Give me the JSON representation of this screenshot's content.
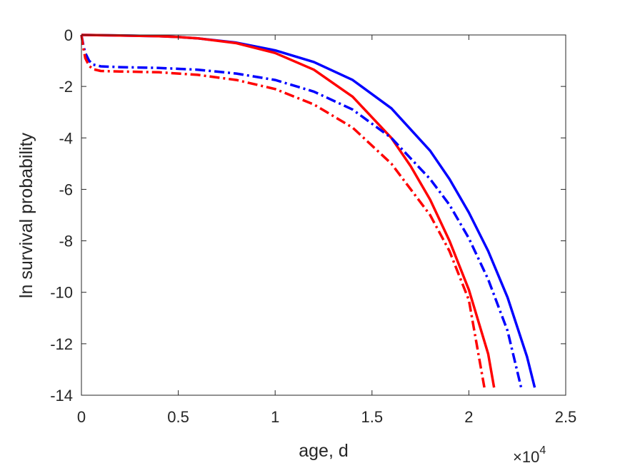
{
  "chart_data": {
    "type": "line",
    "title": "",
    "xlabel": "age, d",
    "ylabel": "ln survival probability",
    "x_exponent_label": {
      "times": "×10",
      "power": "4"
    },
    "xlim": [
      0,
      2.5
    ],
    "ylim": [
      -14,
      0
    ],
    "x_ticks": [
      0,
      0.5,
      1,
      1.5,
      2,
      2.5
    ],
    "x_tick_labels": [
      "0",
      "0.5",
      "1",
      "1.5",
      "2",
      "2.5"
    ],
    "y_ticks": [
      0,
      -2,
      -4,
      -6,
      -8,
      -10,
      -12,
      -14
    ],
    "y_tick_labels": [
      "0",
      "-2",
      "-4",
      "-6",
      "-8",
      "-10",
      "-12",
      "-14"
    ],
    "grid": false,
    "legend": "none",
    "series": [
      {
        "color": "#0000ff",
        "style": "solid",
        "x": [
          0,
          0.2,
          0.4,
          0.5,
          0.6,
          0.8,
          1.0,
          1.2,
          1.4,
          1.6,
          1.8,
          1.9,
          2.0,
          2.1,
          2.2,
          2.3,
          2.34
        ],
        "y": [
          0,
          -0.02,
          -0.05,
          -0.08,
          -0.13,
          -0.3,
          -0.6,
          -1.05,
          -1.75,
          -2.85,
          -4.5,
          -5.6,
          -6.9,
          -8.4,
          -10.2,
          -12.5,
          -13.7
        ]
      },
      {
        "color": "#ff0000",
        "style": "solid",
        "x": [
          0,
          0.2,
          0.4,
          0.5,
          0.6,
          0.8,
          1.0,
          1.2,
          1.4,
          1.6,
          1.7,
          1.8,
          1.9,
          2.0,
          2.1,
          2.13
        ],
        "y": [
          0,
          -0.02,
          -0.05,
          -0.08,
          -0.13,
          -0.32,
          -0.7,
          -1.35,
          -2.4,
          -4.0,
          -5.1,
          -6.4,
          -8.0,
          -9.9,
          -12.4,
          -13.7
        ]
      },
      {
        "color": "#0000ff",
        "style": "dashdot",
        "x": [
          0,
          0.01,
          0.02,
          0.04,
          0.06,
          0.1,
          0.2,
          0.4,
          0.6,
          0.8,
          1.0,
          1.2,
          1.4,
          1.6,
          1.8,
          1.9,
          2.0,
          2.1,
          2.2,
          2.27
        ],
        "y": [
          0,
          -0.4,
          -0.7,
          -1.0,
          -1.15,
          -1.22,
          -1.25,
          -1.28,
          -1.35,
          -1.5,
          -1.75,
          -2.2,
          -2.9,
          -4.0,
          -5.6,
          -6.6,
          -7.9,
          -9.5,
          -11.5,
          -13.7
        ]
      },
      {
        "color": "#ff0000",
        "style": "dashdot",
        "x": [
          0,
          0.01,
          0.02,
          0.04,
          0.06,
          0.1,
          0.2,
          0.4,
          0.6,
          0.8,
          1.0,
          1.2,
          1.4,
          1.6,
          1.8,
          1.9,
          2.0,
          2.08
        ],
        "y": [
          0,
          -0.5,
          -0.9,
          -1.2,
          -1.33,
          -1.4,
          -1.42,
          -1.45,
          -1.55,
          -1.75,
          -2.1,
          -2.7,
          -3.6,
          -5.0,
          -7.0,
          -8.4,
          -10.3,
          -13.7
        ]
      }
    ]
  }
}
